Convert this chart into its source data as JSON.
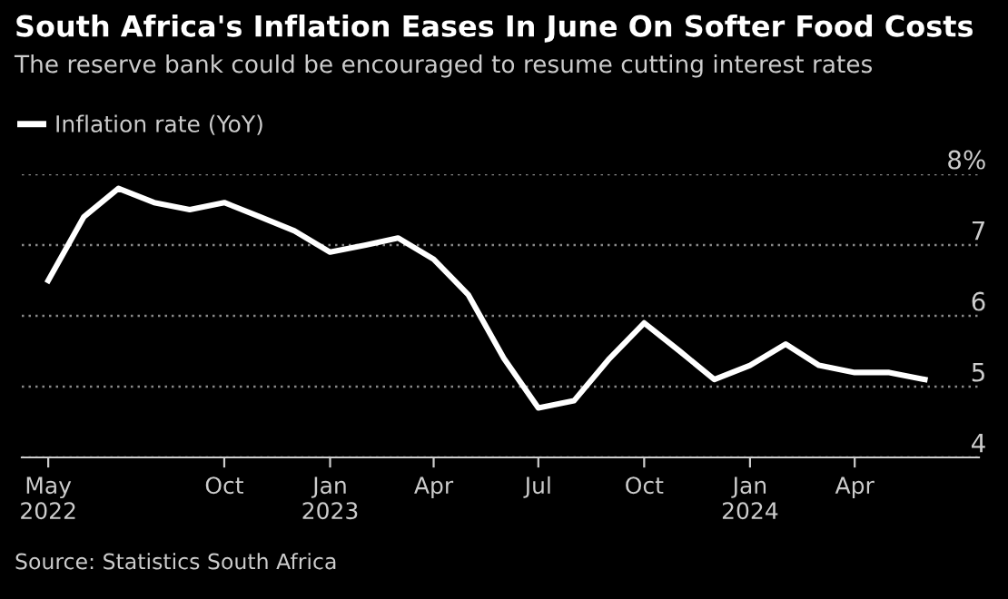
{
  "chart_data": {
    "type": "line",
    "title": "South Africa's Inflation Eases In June On Softer Food Costs",
    "subtitle": "The reserve bank could be encouraged to resume cutting interest rates",
    "x": [
      "2022-05",
      "2022-06",
      "2022-07",
      "2022-08",
      "2022-09",
      "2022-10",
      "2022-11",
      "2022-12",
      "2023-01",
      "2023-02",
      "2023-03",
      "2023-04",
      "2023-05",
      "2023-06",
      "2023-07",
      "2023-08",
      "2023-09",
      "2023-10",
      "2023-11",
      "2023-12",
      "2024-01",
      "2024-02",
      "2024-03",
      "2024-04",
      "2024-05",
      "2024-06"
    ],
    "series": [
      {
        "name": "Inflation rate (YoY)",
        "color": "#ffffff",
        "values": [
          6.5,
          7.4,
          7.8,
          7.6,
          7.5,
          7.6,
          7.4,
          7.2,
          6.9,
          7.0,
          7.1,
          6.8,
          6.3,
          5.4,
          4.7,
          4.8,
          5.4,
          5.9,
          5.5,
          5.1,
          5.3,
          5.6,
          5.3,
          5.2,
          5.2,
          5.1
        ]
      }
    ],
    "xlim": [
      "2022-04-08",
      "2024-07-18"
    ],
    "xticks": [
      {
        "value": "2022-05",
        "label": "May\n2022"
      },
      {
        "value": "2022-10",
        "label": "Oct"
      },
      {
        "value": "2023-01",
        "label": "Jan\n2023"
      },
      {
        "value": "2023-04",
        "label": "Apr"
      },
      {
        "value": "2023-07",
        "label": "Jul"
      },
      {
        "value": "2023-10",
        "label": "Oct"
      },
      {
        "value": "2024-01",
        "label": "Jan\n2024"
      },
      {
        "value": "2024-04",
        "label": "Apr"
      }
    ],
    "ylim": [
      4,
      8
    ],
    "yticks": [
      4,
      5,
      6,
      7,
      {
        "value": 8,
        "label": "8%"
      }
    ],
    "grid": "y",
    "legend": "top left",
    "marker": "none",
    "line_style": "solid",
    "annotations": [
      "Source: Statistics South Africa"
    ]
  }
}
